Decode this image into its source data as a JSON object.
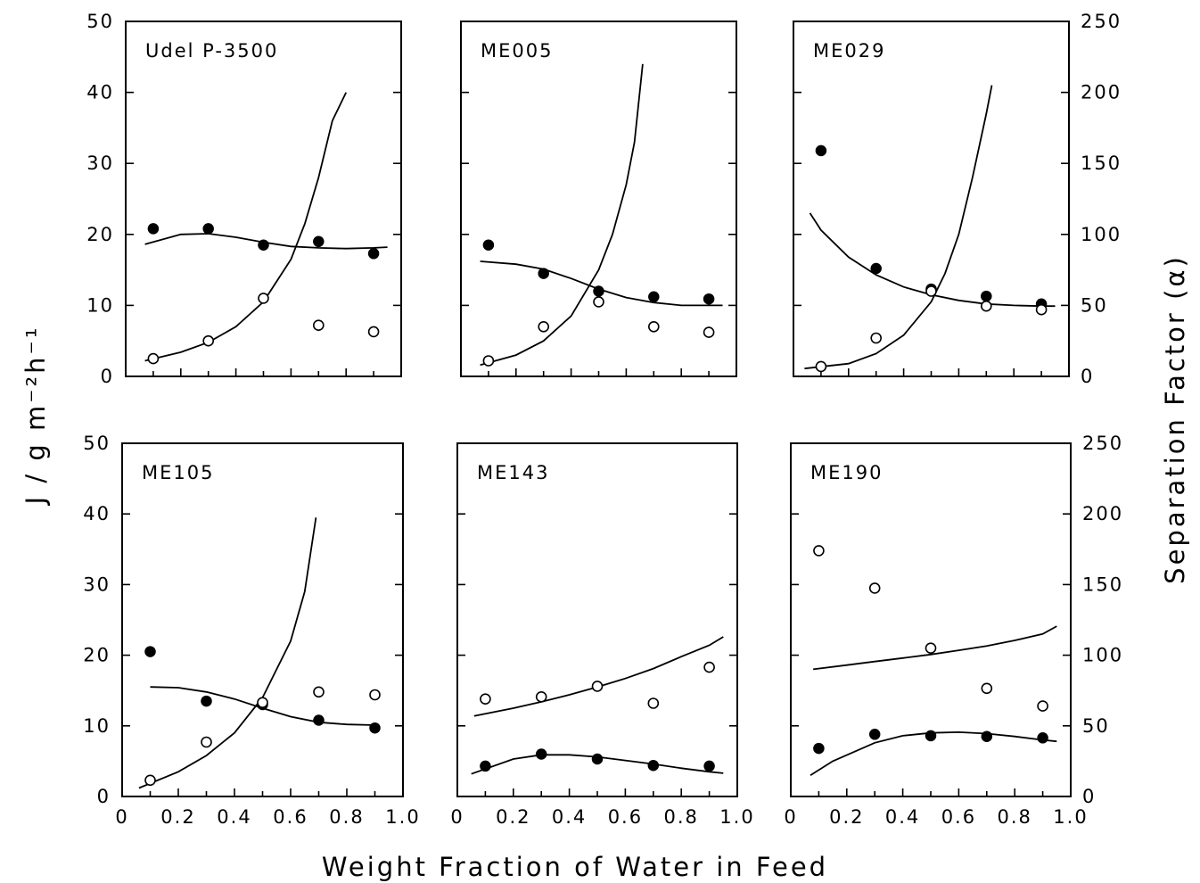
{
  "figure": {
    "left_axis_title": "J / g m⁻²h⁻¹",
    "right_axis_title": "Separation Factor (α)",
    "x_axis_title": "Weight Fraction of Water in Feed",
    "x_tick_labels": [
      "0",
      "0.2",
      "0.4",
      "0.6",
      "0.8",
      "1.0"
    ],
    "left_tick_labels": [
      "0",
      "10",
      "20",
      "30",
      "40",
      "50"
    ],
    "right_tick_labels": [
      "0",
      "50",
      "100",
      "150",
      "200",
      "250"
    ],
    "colors": {
      "line": "#000000",
      "filled_marker": "#000000",
      "open_marker": "#ffffff"
    },
    "marker_styles": {
      "filled": "filled circle",
      "open": "open circle"
    }
  },
  "chart_data": [
    {
      "type": "scatter",
      "title": "Udel P-3500",
      "xlim": [
        0,
        1.0
      ],
      "ylim": [
        0,
        50
      ],
      "y2lim": [
        0,
        250
      ],
      "series": [
        {
          "marker": "filled",
          "axis": "left",
          "points": [
            [
              0.1,
              20.8
            ],
            [
              0.3,
              20.8
            ],
            [
              0.5,
              18.5
            ],
            [
              0.7,
              19.0
            ],
            [
              0.9,
              17.3
            ]
          ]
        },
        {
          "marker": "open",
          "axis": "left",
          "points": [
            [
              0.1,
              2.5
            ],
            [
              0.3,
              5.0
            ],
            [
              0.5,
              11.0
            ],
            [
              0.7,
              7.2
            ],
            [
              0.9,
              6.3
            ]
          ]
        }
      ],
      "curves": [
        {
          "fits": "filled",
          "points": [
            [
              0.07,
              18.6
            ],
            [
              0.2,
              20.0
            ],
            [
              0.3,
              20.1
            ],
            [
              0.4,
              19.6
            ],
            [
              0.5,
              18.9
            ],
            [
              0.6,
              18.3
            ],
            [
              0.7,
              18.1
            ],
            [
              0.8,
              18.0
            ],
            [
              0.9,
              18.1
            ],
            [
              0.95,
              18.2
            ]
          ]
        },
        {
          "fits": "open",
          "points": [
            [
              0.07,
              2.2
            ],
            [
              0.2,
              3.4
            ],
            [
              0.3,
              4.8
            ],
            [
              0.4,
              7.0
            ],
            [
              0.5,
              10.5
            ],
            [
              0.6,
              16.5
            ],
            [
              0.65,
              21.5
            ],
            [
              0.7,
              28.0
            ],
            [
              0.75,
              36.0
            ],
            [
              0.8,
              40.0
            ]
          ]
        }
      ]
    },
    {
      "type": "scatter",
      "title": "ME005",
      "xlim": [
        0,
        1.0
      ],
      "ylim": [
        0,
        50
      ],
      "y2lim": [
        0,
        250
      ],
      "series": [
        {
          "marker": "filled",
          "axis": "left",
          "points": [
            [
              0.1,
              18.5
            ],
            [
              0.3,
              14.5
            ],
            [
              0.5,
              12.0
            ],
            [
              0.7,
              11.2
            ],
            [
              0.9,
              10.9
            ]
          ]
        },
        {
          "marker": "open",
          "axis": "left",
          "points": [
            [
              0.1,
              2.2
            ],
            [
              0.3,
              7.0
            ],
            [
              0.5,
              10.5
            ],
            [
              0.7,
              7.0
            ],
            [
              0.9,
              6.2
            ]
          ]
        }
      ],
      "curves": [
        {
          "fits": "filled",
          "points": [
            [
              0.07,
              16.2
            ],
            [
              0.2,
              15.8
            ],
            [
              0.3,
              15.1
            ],
            [
              0.4,
              13.8
            ],
            [
              0.5,
              12.3
            ],
            [
              0.6,
              11.1
            ],
            [
              0.7,
              10.4
            ],
            [
              0.8,
              10.0
            ],
            [
              0.9,
              10.0
            ],
            [
              0.95,
              10.0
            ]
          ]
        },
        {
          "fits": "open",
          "points": [
            [
              0.07,
              1.6
            ],
            [
              0.2,
              3.0
            ],
            [
              0.3,
              5.0
            ],
            [
              0.4,
              8.5
            ],
            [
              0.5,
              15.0
            ],
            [
              0.55,
              20.0
            ],
            [
              0.6,
              27.0
            ],
            [
              0.63,
              33.0
            ],
            [
              0.66,
              44.0
            ]
          ]
        }
      ]
    },
    {
      "type": "scatter",
      "title": "ME029",
      "xlim": [
        0,
        1.0
      ],
      "ylim": [
        0,
        50
      ],
      "y2lim": [
        0,
        250
      ],
      "series": [
        {
          "marker": "filled",
          "axis": "left",
          "points": [
            [
              0.1,
              31.8
            ],
            [
              0.3,
              15.2
            ],
            [
              0.5,
              12.3
            ],
            [
              0.7,
              11.3
            ],
            [
              0.9,
              10.2
            ]
          ]
        },
        {
          "marker": "open",
          "axis": "left",
          "points": [
            [
              0.1,
              1.4
            ],
            [
              0.3,
              5.4
            ],
            [
              0.5,
              12.0
            ],
            [
              0.7,
              9.9
            ],
            [
              0.9,
              9.4
            ]
          ]
        }
      ],
      "curves": [
        {
          "fits": "filled",
          "points": [
            [
              0.06,
              23.0
            ],
            [
              0.1,
              20.6
            ],
            [
              0.2,
              16.8
            ],
            [
              0.3,
              14.3
            ],
            [
              0.4,
              12.6
            ],
            [
              0.5,
              11.5
            ],
            [
              0.6,
              10.7
            ],
            [
              0.7,
              10.2
            ],
            [
              0.8,
              10.0
            ],
            [
              0.9,
              9.9
            ],
            [
              0.95,
              9.9
            ]
          ]
        },
        {
          "fits": "open",
          "points": [
            [
              0.04,
              1.1
            ],
            [
              0.2,
              1.8
            ],
            [
              0.3,
              3.2
            ],
            [
              0.4,
              5.8
            ],
            [
              0.5,
              10.5
            ],
            [
              0.55,
              14.5
            ],
            [
              0.6,
              20.0
            ],
            [
              0.65,
              28.0
            ],
            [
              0.7,
              37.0
            ],
            [
              0.72,
              41.0
            ]
          ]
        }
      ]
    },
    {
      "type": "scatter",
      "title": "ME105",
      "xlim": [
        0,
        1.0
      ],
      "ylim": [
        0,
        50
      ],
      "y2lim": [
        0,
        250
      ],
      "series": [
        {
          "marker": "filled",
          "axis": "left",
          "points": [
            [
              0.1,
              20.5
            ],
            [
              0.3,
              13.5
            ],
            [
              0.5,
              13.0
            ],
            [
              0.7,
              10.8
            ],
            [
              0.9,
              9.7
            ]
          ]
        },
        {
          "marker": "open",
          "axis": "left",
          "points": [
            [
              0.1,
              2.3
            ],
            [
              0.3,
              7.7
            ],
            [
              0.5,
              13.3
            ],
            [
              0.7,
              14.8
            ],
            [
              0.9,
              14.4
            ]
          ]
        }
      ],
      "curves": [
        {
          "fits": "filled",
          "points": [
            [
              0.1,
              15.5
            ],
            [
              0.2,
              15.4
            ],
            [
              0.3,
              14.8
            ],
            [
              0.4,
              13.8
            ],
            [
              0.5,
              12.5
            ],
            [
              0.6,
              11.3
            ],
            [
              0.7,
              10.5
            ],
            [
              0.8,
              10.2
            ],
            [
              0.9,
              10.1
            ]
          ]
        },
        {
          "fits": "open",
          "points": [
            [
              0.06,
              1.2
            ],
            [
              0.2,
              3.5
            ],
            [
              0.3,
              5.8
            ],
            [
              0.4,
              9.0
            ],
            [
              0.5,
              14.0
            ],
            [
              0.6,
              22.0
            ],
            [
              0.65,
              29.0
            ],
            [
              0.69,
              39.5
            ]
          ]
        }
      ]
    },
    {
      "type": "scatter",
      "title": "ME143",
      "xlim": [
        0,
        1.0
      ],
      "ylim": [
        0,
        50
      ],
      "y2lim": [
        0,
        250
      ],
      "series": [
        {
          "marker": "filled",
          "axis": "left",
          "points": [
            [
              0.1,
              4.3
            ],
            [
              0.3,
              6.0
            ],
            [
              0.5,
              5.3
            ],
            [
              0.7,
              4.4
            ],
            [
              0.9,
              4.3
            ]
          ]
        },
        {
          "marker": "open",
          "axis": "left",
          "points": [
            [
              0.1,
              13.8
            ],
            [
              0.3,
              14.1
            ],
            [
              0.5,
              15.6
            ],
            [
              0.7,
              13.2
            ],
            [
              0.9,
              18.3
            ]
          ]
        }
      ],
      "curves": [
        {
          "fits": "filled",
          "points": [
            [
              0.05,
              3.2
            ],
            [
              0.2,
              5.3
            ],
            [
              0.3,
              5.9
            ],
            [
              0.4,
              5.9
            ],
            [
              0.5,
              5.6
            ],
            [
              0.6,
              5.1
            ],
            [
              0.7,
              4.6
            ],
            [
              0.8,
              4.0
            ],
            [
              0.9,
              3.5
            ],
            [
              0.95,
              3.3
            ]
          ]
        },
        {
          "fits": "open",
          "points": [
            [
              0.06,
              11.4
            ],
            [
              0.2,
              12.5
            ],
            [
              0.3,
              13.4
            ],
            [
              0.4,
              14.4
            ],
            [
              0.5,
              15.5
            ],
            [
              0.6,
              16.7
            ],
            [
              0.7,
              18.1
            ],
            [
              0.8,
              19.8
            ],
            [
              0.9,
              21.4
            ],
            [
              0.95,
              22.6
            ]
          ]
        }
      ]
    },
    {
      "type": "scatter",
      "title": "ME190",
      "xlim": [
        0,
        1.0
      ],
      "ylim": [
        0,
        50
      ],
      "y2lim": [
        0,
        250
      ],
      "series": [
        {
          "marker": "filled",
          "axis": "left",
          "points": [
            [
              0.1,
              6.8
            ],
            [
              0.3,
              8.8
            ],
            [
              0.5,
              8.6
            ],
            [
              0.7,
              8.5
            ],
            [
              0.9,
              8.3
            ]
          ]
        },
        {
          "marker": "open",
          "axis": "left",
          "points": [
            [
              0.1,
              34.8
            ],
            [
              0.3,
              29.5
            ],
            [
              0.5,
              21.0
            ],
            [
              0.7,
              15.3
            ],
            [
              0.9,
              12.8
            ]
          ]
        }
      ],
      "curves": [
        {
          "fits": "filled",
          "points": [
            [
              0.07,
              3.0
            ],
            [
              0.15,
              5.0
            ],
            [
              0.3,
              7.6
            ],
            [
              0.4,
              8.6
            ],
            [
              0.5,
              9.0
            ],
            [
              0.6,
              9.1
            ],
            [
              0.7,
              8.9
            ],
            [
              0.8,
              8.5
            ],
            [
              0.9,
              8.0
            ],
            [
              0.95,
              7.8
            ]
          ]
        },
        {
          "fits": "open",
          "points": [
            [
              0.08,
              18.0
            ],
            [
              0.2,
              18.6
            ],
            [
              0.3,
              19.1
            ],
            [
              0.4,
              19.6
            ],
            [
              0.5,
              20.1
            ],
            [
              0.6,
              20.7
            ],
            [
              0.7,
              21.3
            ],
            [
              0.8,
              22.1
            ],
            [
              0.9,
              23.0
            ],
            [
              0.95,
              24.1
            ]
          ]
        }
      ]
    }
  ]
}
